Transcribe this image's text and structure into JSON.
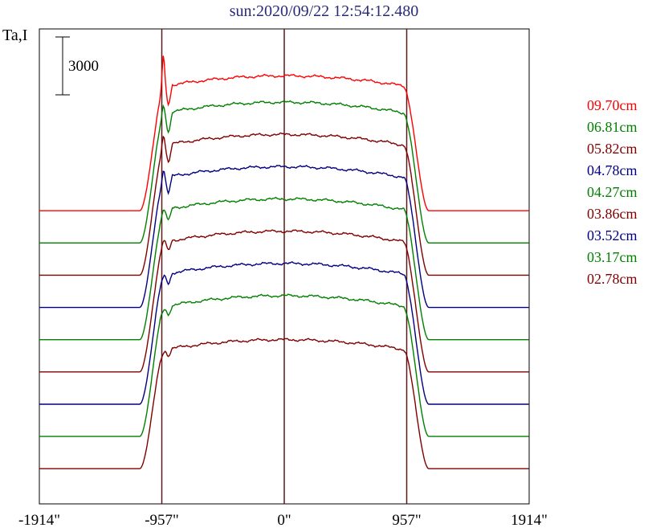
{
  "title": "sun:2020/09/22 12:54:12.480",
  "chart_data": {
    "type": "line",
    "ylabel": "Ta,I",
    "scale_bar_label": "3000",
    "x_ticks": [
      {
        "value": -1914,
        "label": "-1914\""
      },
      {
        "value": -957,
        "label": "-957\""
      },
      {
        "value": 0,
        "label": "0\""
      },
      {
        "value": 957,
        "label": "957\""
      },
      {
        "value": 1914,
        "label": "1914\""
      }
    ],
    "xlim": [
      -1914,
      1914
    ],
    "vertical_lines": [
      -957,
      0,
      957
    ],
    "legend_placement": "right",
    "series": [
      {
        "name": "09.70cm",
        "color": "#ff0000",
        "baseline": 0,
        "plateau": 4600,
        "peak": 5400,
        "spike_depth": 1400
      },
      {
        "name": "06.81cm",
        "color": "#008000",
        "baseline": -1100,
        "plateau": 3700,
        "peak": 3600,
        "spike_depth": 1500
      },
      {
        "name": "05.82cm",
        "color": "#800000",
        "baseline": -2200,
        "plateau": 2600,
        "peak": 2700,
        "spike_depth": 1300
      },
      {
        "name": "04.78cm",
        "color": "#000080",
        "baseline": -3300,
        "plateau": 1500,
        "peak": 1500,
        "spike_depth": 1200
      },
      {
        "name": "04.27cm",
        "color": "#008000",
        "baseline": -4400,
        "plateau": 400,
        "peak": 200,
        "spike_depth": 900
      },
      {
        "name": "03.86cm",
        "color": "#800000",
        "baseline": -5500,
        "plateau": -700,
        "peak": -800,
        "spike_depth": 700
      },
      {
        "name": "03.52cm",
        "color": "#000080",
        "baseline": -6600,
        "plateau": -1800,
        "peak": -2100,
        "spike_depth": 800
      },
      {
        "name": "03.17cm",
        "color": "#008000",
        "baseline": -7700,
        "plateau": -2900,
        "peak": -3200,
        "spike_depth": 700
      },
      {
        "name": "02.78cm",
        "color": "#800000",
        "baseline": -8800,
        "plateau": -4400,
        "peak": -4600,
        "spike_depth": 500
      }
    ]
  }
}
